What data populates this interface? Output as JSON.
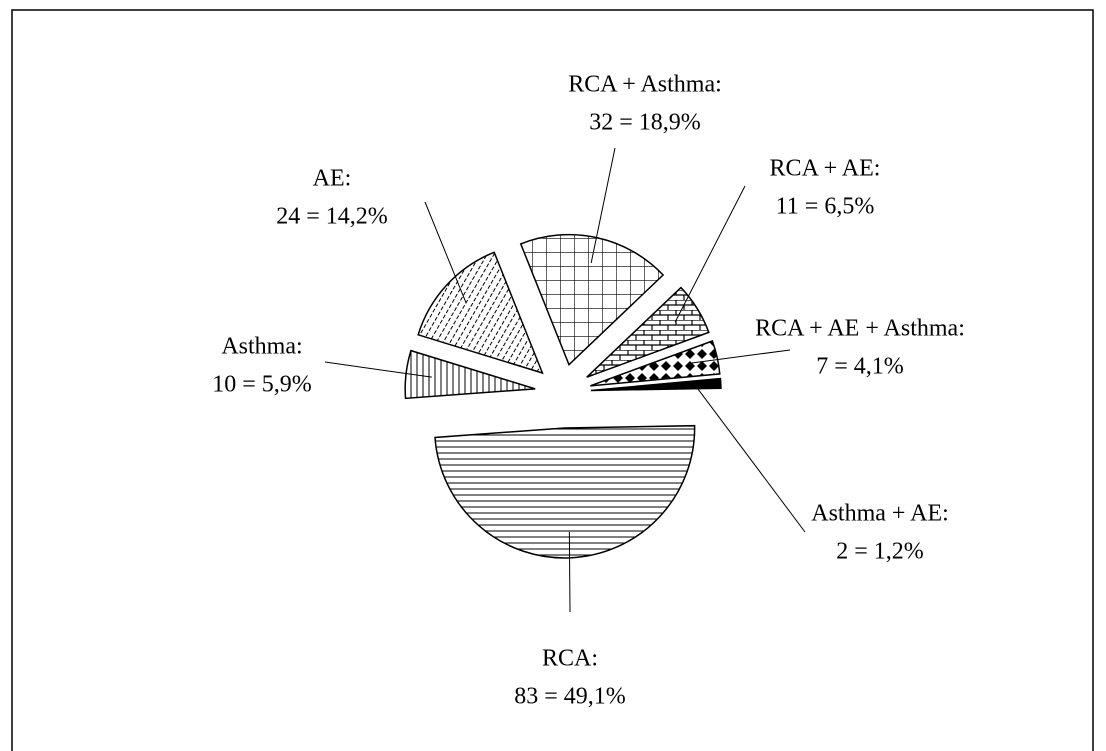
{
  "chart_data": {
    "type": "pie",
    "categories": [
      "RCA:",
      "Asthma:",
      "AE:",
      "RCA + Asthma:",
      "RCA + AE:",
      "RCA + AE + Asthma:",
      "Asthma + AE:"
    ],
    "values": [
      83,
      10,
      24,
      32,
      11,
      7,
      2
    ],
    "value_labels": [
      "83 = 49,1%",
      "10 = 5,9%",
      "24 = 14,2%",
      "32 = 18,9%",
      "11 = 6,5%",
      "7 = 4,1%",
      "2 = 1,2%"
    ]
  }
}
